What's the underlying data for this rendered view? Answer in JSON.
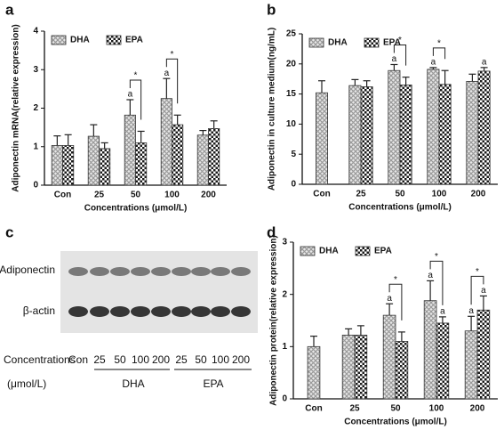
{
  "chart_data": [
    {
      "type": "bar",
      "panel": "a",
      "y_label": "Adiponectin mRNA(relative expression)",
      "x_label": "Concentrations (μmol/L)",
      "categories": [
        "Con",
        "25",
        "50",
        "100",
        "200"
      ],
      "series": [
        {
          "name": "DHA",
          "color": "#9a9a9a",
          "pattern": "crosshatch",
          "values": [
            1.03,
            1.27,
            1.82,
            2.25,
            1.3
          ],
          "errors": [
            0.25,
            0.3,
            0.4,
            0.52,
            0.12
          ],
          "sig_letters": [
            null,
            null,
            "a",
            "a",
            null
          ]
        },
        {
          "name": "EPA",
          "color": "#1a1a1a",
          "pattern": "checker",
          "values": [
            1.03,
            0.95,
            1.1,
            1.57,
            1.47
          ],
          "errors": [
            0.28,
            0.15,
            0.3,
            0.25,
            0.2
          ],
          "sig_letters": [
            null,
            null,
            null,
            null,
            null
          ]
        }
      ],
      "brackets": [
        null,
        null,
        "*",
        "*",
        null
      ],
      "ylim": [
        0,
        4
      ],
      "yticks": [
        0,
        1,
        2,
        3,
        4
      ]
    },
    {
      "type": "bar",
      "panel": "b",
      "y_label": "Adiponectin in culture medium(ng/mL)",
      "x_label": "Concentrations (μmol/L)",
      "categories": [
        "Con",
        "25",
        "50",
        "100",
        "200"
      ],
      "series": [
        {
          "name": "DHA",
          "color": "#9a9a9a",
          "pattern": "crosshatch",
          "values": [
            15.2,
            16.4,
            18.9,
            19.1,
            17.1
          ],
          "errors": [
            2.0,
            1.0,
            1.0,
            0.3,
            1.2
          ],
          "sig_letters": [
            null,
            null,
            "a",
            "a",
            null
          ]
        },
        {
          "name": "EPA",
          "color": "#1a1a1a",
          "pattern": "checker",
          "values": [
            null,
            16.2,
            16.5,
            16.6,
            18.8
          ],
          "errors": [
            null,
            1.0,
            1.3,
            2.3,
            0.6
          ],
          "sig_letters": [
            null,
            null,
            null,
            null,
            "a"
          ]
        }
      ],
      "brackets": [
        null,
        null,
        "*",
        "*",
        null
      ],
      "ylim": [
        0,
        25
      ],
      "yticks": [
        0,
        5,
        10,
        15,
        20,
        25
      ]
    },
    {
      "type": "bar",
      "panel": "d",
      "y_label": "Adiponectin protein(relative expression)",
      "x_label": "Concentrations (μmol/L)",
      "categories": [
        "Con",
        "25",
        "50",
        "100",
        "200"
      ],
      "series": [
        {
          "name": "DHA",
          "color": "#9a9a9a",
          "pattern": "crosshatch",
          "values": [
            1.0,
            1.22,
            1.6,
            1.88,
            1.3
          ],
          "errors": [
            0.2,
            0.12,
            0.22,
            0.38,
            0.28
          ],
          "sig_letters": [
            null,
            null,
            "a",
            "a",
            "a"
          ]
        },
        {
          "name": "EPA",
          "color": "#1a1a1a",
          "pattern": "checker",
          "values": [
            null,
            1.22,
            1.1,
            1.45,
            1.7
          ],
          "errors": [
            null,
            0.18,
            0.18,
            0.12,
            0.27
          ],
          "sig_letters": [
            null,
            null,
            null,
            "a",
            "a"
          ]
        }
      ],
      "brackets": [
        null,
        null,
        "*",
        "*",
        "*"
      ],
      "ylim": [
        0,
        3
      ],
      "yticks": [
        0,
        1,
        2,
        3
      ]
    }
  ],
  "blot": {
    "panel": "c",
    "rows": [
      "Adiponectin",
      "β-actin"
    ],
    "x_title": "Concentrations",
    "unit": "(μmol/L)",
    "lanes": [
      "Con",
      "25",
      "50",
      "100",
      "200",
      "25",
      "50",
      "100",
      "200"
    ],
    "groups": [
      "DHA",
      "EPA"
    ]
  }
}
